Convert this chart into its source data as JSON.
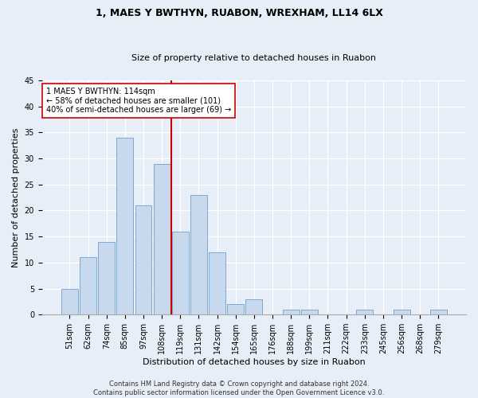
{
  "title1": "1, MAES Y BWTHYN, RUABON, WREXHAM, LL14 6LX",
  "title2": "Size of property relative to detached houses in Ruabon",
  "xlabel": "Distribution of detached houses by size in Ruabon",
  "ylabel": "Number of detached properties",
  "categories": [
    "51sqm",
    "62sqm",
    "74sqm",
    "85sqm",
    "97sqm",
    "108sqm",
    "119sqm",
    "131sqm",
    "142sqm",
    "154sqm",
    "165sqm",
    "176sqm",
    "188sqm",
    "199sqm",
    "211sqm",
    "222sqm",
    "233sqm",
    "245sqm",
    "256sqm",
    "268sqm",
    "279sqm"
  ],
  "values": [
    5,
    11,
    14,
    34,
    21,
    29,
    16,
    23,
    12,
    2,
    3,
    0,
    1,
    1,
    0,
    0,
    1,
    0,
    1,
    0,
    1
  ],
  "bar_color": "#c8d9ee",
  "bar_edge_color": "#7aaad4",
  "vline_color": "#cc0000",
  "vline_x_index": 6,
  "annotation_text": "1 MAES Y BWTHYN: 114sqm\n← 58% of detached houses are smaller (101)\n40% of semi-detached houses are larger (69) →",
  "annotation_box_color": "#ffffff",
  "annotation_edge_color": "#cc0000",
  "ylim": [
    0,
    45
  ],
  "yticks": [
    0,
    5,
    10,
    15,
    20,
    25,
    30,
    35,
    40,
    45
  ],
  "footer_text": "Contains HM Land Registry data © Crown copyright and database right 2024.\nContains public sector information licensed under the Open Government Licence v3.0.",
  "bg_color": "#e8eef8",
  "plot_bg_color": "#e8eef8",
  "grid_color": "#ffffff",
  "title1_fontsize": 9,
  "title2_fontsize": 8,
  "tick_fontsize": 7,
  "ylabel_fontsize": 8,
  "xlabel_fontsize": 8,
  "annotation_fontsize": 7,
  "footer_fontsize": 6
}
